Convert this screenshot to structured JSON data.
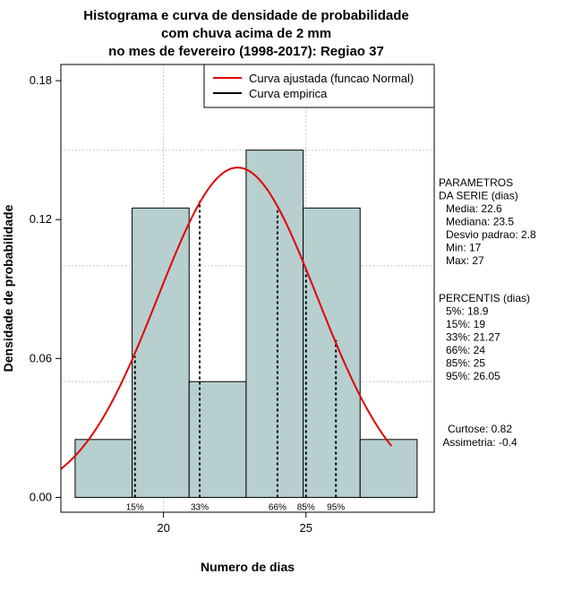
{
  "chart_data": {
    "type": "histogram",
    "title": [
      "Histograma e curva de densidade de probabilidade",
      "com chuva acima de 2 mm",
      "no mes de fevereiro (1998-2017): Regiao 37"
    ],
    "xlabel": "Numero de dias",
    "ylabel": "Densidade de probabilidade",
    "xlim": [
      16.4,
      29.5
    ],
    "ylim": [
      -0.0064,
      0.187
    ],
    "x_ticks": [
      20,
      25
    ],
    "y_ticks": [
      0.0,
      0.06,
      0.12,
      0.18
    ],
    "y_tick_labels": [
      "0.00",
      "0.06",
      "0.12",
      "0.18"
    ],
    "bars": [
      {
        "x0": 16.9,
        "x1": 18.9,
        "density": 0.025
      },
      {
        "x0": 18.9,
        "x1": 20.9,
        "density": 0.125
      },
      {
        "x0": 20.9,
        "x1": 22.9,
        "density": 0.05
      },
      {
        "x0": 22.9,
        "x1": 24.9,
        "density": 0.15
      },
      {
        "x0": 24.9,
        "x1": 26.9,
        "density": 0.125
      },
      {
        "x0": 26.9,
        "x1": 28.9,
        "density": 0.025
      }
    ],
    "bar_color": "#b7cfcf",
    "fitted_curve": {
      "name": "Curva ajustada (funcao Normal)",
      "color": "#e00000",
      "mean": 22.6,
      "sd": 2.8,
      "x_range": [
        16.4,
        28.0
      ]
    },
    "empirical_curve": {
      "name": "Curva empirica",
      "color": "#000000"
    },
    "percentile_lines": [
      {
        "label": "15%",
        "x": 19.0,
        "y": 0.061
      },
      {
        "label": "33%",
        "x": 21.27,
        "y": 0.128
      },
      {
        "label": "66%",
        "x": 24.0,
        "y": 0.124
      },
      {
        "label": "85%",
        "x": 25.0,
        "y": 0.099
      },
      {
        "label": "95%",
        "x": 26.05,
        "y": 0.068
      }
    ],
    "legend": [
      {
        "label": "Curva ajustada (funcao Normal)",
        "color": "#e00000"
      },
      {
        "label": "Curva empirica",
        "color": "#000000"
      }
    ],
    "legend_position": "top-right",
    "grid": true,
    "side_panel": {
      "parametros": [
        "PARAMETROS",
        "DA SERIE (dias)",
        "Media: 22.6",
        "Mediana: 23.5",
        "Desvio padrao: 2.8",
        "Min: 17",
        "Max: 27"
      ],
      "percentis": [
        "PERCENTIS (dias)",
        "5%: 18.9",
        "15%: 19",
        "33%: 21.27",
        "66%: 24",
        "85%: 25",
        "95%: 26.05"
      ],
      "forma": [
        "Curtose: 0.82",
        "Assimetria: -0.4"
      ]
    }
  }
}
